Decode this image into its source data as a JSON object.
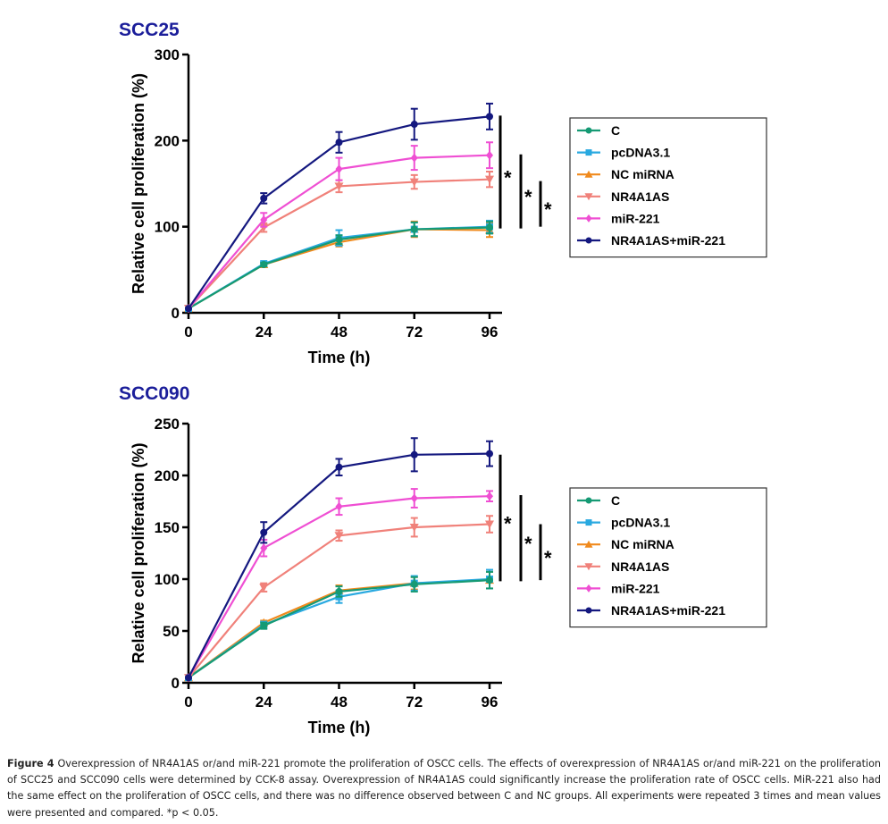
{
  "chart_data": [
    {
      "type": "line",
      "title": "SCC25",
      "xlabel": "Time (h)",
      "ylabel": "Relative cell proliferation (%)",
      "x": [
        0,
        24,
        48,
        72,
        96
      ],
      "xticks": [
        "0",
        "24",
        "48",
        "72",
        "96"
      ],
      "yticks": [
        "0",
        "100",
        "200",
        "300"
      ],
      "ylim": [
        0,
        300
      ],
      "xlim": [
        0,
        96
      ],
      "grid": false,
      "legend_position": "right",
      "series": [
        {
          "name": "C",
          "color": "#159a74",
          "marker": "circle",
          "values": [
            5,
            56,
            85,
            97,
            99
          ],
          "errors": [
            0,
            2,
            5,
            8,
            7
          ]
        },
        {
          "name": "pcDNA3.1",
          "color": "#29a9e0",
          "marker": "square",
          "values": [
            5,
            57,
            87,
            97,
            100
          ],
          "errors": [
            0,
            2,
            9,
            8,
            7
          ]
        },
        {
          "name": "NC miRNA",
          "color": "#f08a1d",
          "marker": "triangle-up",
          "values": [
            5,
            56,
            82,
            97,
            96
          ],
          "errors": [
            0,
            2,
            5,
            9,
            8
          ]
        },
        {
          "name": "NR4A1AS",
          "color": "#f0817a",
          "marker": "triangle-down",
          "values": [
            5,
            99,
            147,
            152,
            155
          ],
          "errors": [
            0,
            5,
            7,
            8,
            9
          ]
        },
        {
          "name": "miR-221",
          "color": "#ef4fd3",
          "marker": "diamond",
          "values": [
            5,
            108,
            167,
            180,
            183
          ],
          "errors": [
            0,
            8,
            13,
            14,
            15
          ]
        },
        {
          "name": "NR4A1AS+miR-221",
          "color": "#14187f",
          "marker": "circle",
          "values": [
            5,
            133,
            198,
            219,
            228
          ],
          "errors": [
            0,
            6,
            12,
            18,
            15
          ]
        }
      ],
      "significance": [
        {
          "label": "*",
          "from": 98,
          "to": 229
        },
        {
          "label": "*",
          "from": 98,
          "to": 184
        },
        {
          "label": "*",
          "from": 100,
          "to": 153
        }
      ]
    },
    {
      "type": "line",
      "title": "SCC090",
      "xlabel": "Time (h)",
      "ylabel": "Relative cell proliferation (%)",
      "x": [
        0,
        24,
        48,
        72,
        96
      ],
      "xticks": [
        "0",
        "24",
        "48",
        "72",
        "96"
      ],
      "yticks": [
        "0",
        "50",
        "100",
        "150",
        "200",
        "250"
      ],
      "ylim": [
        0,
        250
      ],
      "xlim": [
        0,
        96
      ],
      "grid": false,
      "legend_position": "right",
      "series": [
        {
          "name": "C",
          "color": "#159a74",
          "marker": "circle",
          "values": [
            5,
            55,
            88,
            95,
            99
          ],
          "errors": [
            0,
            3,
            5,
            7,
            8
          ]
        },
        {
          "name": "pcDNA3.1",
          "color": "#29a9e0",
          "marker": "square",
          "values": [
            5,
            56,
            83,
            96,
            100
          ],
          "errors": [
            0,
            3,
            6,
            7,
            9
          ]
        },
        {
          "name": "NC miRNA",
          "color": "#f08a1d",
          "marker": "triangle-up",
          "values": [
            5,
            58,
            89,
            96,
            99
          ],
          "errors": [
            0,
            2,
            5,
            6,
            8
          ]
        },
        {
          "name": "NR4A1AS",
          "color": "#f0817a",
          "marker": "triangle-down",
          "values": [
            5,
            92,
            142,
            150,
            153
          ],
          "errors": [
            0,
            4,
            5,
            9,
            8
          ]
        },
        {
          "name": "miR-221",
          "color": "#ef4fd3",
          "marker": "diamond",
          "values": [
            5,
            130,
            170,
            178,
            180
          ],
          "errors": [
            0,
            8,
            8,
            9,
            5
          ]
        },
        {
          "name": "NR4A1AS+miR-221",
          "color": "#14187f",
          "marker": "circle",
          "values": [
            5,
            145,
            208,
            220,
            221
          ],
          "errors": [
            0,
            10,
            8,
            16,
            12
          ]
        }
      ],
      "significance": [
        {
          "label": "*",
          "from": 98,
          "to": 220
        },
        {
          "label": "*",
          "from": 98,
          "to": 181
        },
        {
          "label": "*",
          "from": 99,
          "to": 153
        }
      ]
    }
  ],
  "caption": {
    "label": "Figure 4",
    "text": " Overexpression of NR4A1AS or/and miR-221 promote the proliferation of OSCC cells. The effects of overexpression of NR4A1AS or/and miR-221 on the proliferation of SCC25 and SCC090 cells were determined by CCK-8 assay. Overexpression of NR4A1AS could significantly increase the proliferation rate of OSCC cells. MiR-221 also had the same effect on the proliferation of OSCC cells, and there was no difference observed between C and NC groups. All experiments were repeated 3 times and mean values were presented and compared. *p < 0.05."
  }
}
